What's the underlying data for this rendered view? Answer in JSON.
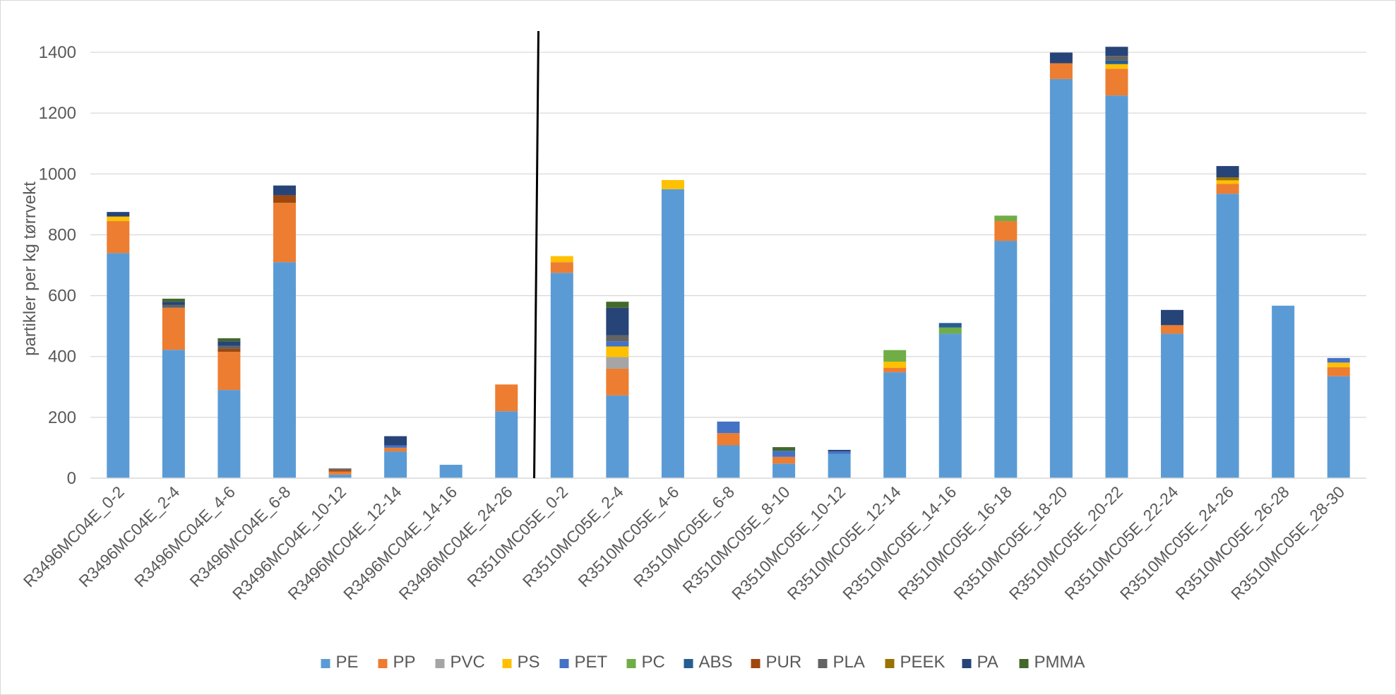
{
  "chart_data": {
    "type": "bar",
    "stacked": true,
    "ylabel": "partikler per kg tørrvekt",
    "ylim": [
      0,
      1400
    ],
    "yticks": [
      0,
      200,
      400,
      600,
      800,
      1000,
      1200,
      1400
    ],
    "grid": true,
    "legend_position": "bottom",
    "divider_after_index": 7,
    "categories": [
      "R3496MC04E_0-2",
      "R3496MC04E_2-4",
      "R3496MC04E_4-6",
      "R3496MC04E_6-8",
      "R3496MC04E_10-12",
      "R3496MC04E_12-14",
      "R3496MC04E_14-16",
      "R3496MC04E_24-26",
      "R3510MC05E_0-2",
      "R3510MC05E_2-4",
      "R3510MC05E_4-6",
      "R3510MC05E_6-8",
      "R3510MC05E_8-10",
      "R3510MC05E_10-12",
      "R3510MC05E_12-14",
      "R3510MC05E_14-16",
      "R3510MC05E_16-18",
      "R3510MC05E_18-20",
      "R3510MC05E_20-22",
      "R3510MC05E_22-24",
      "R3510MC05E_24-26",
      "R3510MC05E_26-28",
      "R3510MC05E_28-30"
    ],
    "series": [
      {
        "name": "PE",
        "color": "#5B9BD5",
        "values": [
          740,
          422,
          290,
          710,
          12,
          88,
          44,
          220,
          675,
          272,
          950,
          108,
          48,
          80,
          348,
          475,
          780,
          1312,
          1258,
          475,
          935,
          567,
          335
        ]
      },
      {
        "name": "PP",
        "color": "#ED7D31",
        "values": [
          105,
          138,
          125,
          195,
          10,
          12,
          0,
          88,
          35,
          88,
          0,
          40,
          22,
          0,
          15,
          0,
          65,
          52,
          88,
          28,
          32,
          0,
          30
        ]
      },
      {
        "name": "PVC",
        "color": "#A5A5A5",
        "values": [
          0,
          0,
          0,
          0,
          0,
          0,
          0,
          0,
          0,
          38,
          0,
          0,
          0,
          0,
          0,
          0,
          0,
          0,
          0,
          0,
          0,
          0,
          0
        ]
      },
      {
        "name": "PS",
        "color": "#FFC000",
        "values": [
          15,
          0,
          0,
          0,
          0,
          0,
          0,
          0,
          20,
          35,
          30,
          0,
          0,
          0,
          20,
          0,
          0,
          0,
          15,
          0,
          12,
          0,
          15
        ]
      },
      {
        "name": "PET",
        "color": "#4472C4",
        "values": [
          0,
          0,
          0,
          0,
          0,
          8,
          0,
          0,
          0,
          17,
          0,
          38,
          20,
          8,
          0,
          0,
          0,
          0,
          0,
          0,
          0,
          0,
          15
        ]
      },
      {
        "name": "PC",
        "color": "#70AD47",
        "values": [
          0,
          0,
          0,
          0,
          0,
          0,
          0,
          0,
          0,
          0,
          0,
          0,
          0,
          0,
          38,
          20,
          18,
          0,
          0,
          0,
          0,
          0,
          0
        ]
      },
      {
        "name": "ABS",
        "color": "#255E91",
        "values": [
          0,
          0,
          0,
          0,
          0,
          0,
          0,
          0,
          0,
          0,
          0,
          0,
          0,
          0,
          0,
          15,
          0,
          0,
          12,
          0,
          0,
          0,
          0
        ]
      },
      {
        "name": "PUR",
        "color": "#9E480E",
        "values": [
          0,
          0,
          10,
          25,
          5,
          0,
          0,
          0,
          0,
          0,
          0,
          0,
          0,
          0,
          0,
          0,
          0,
          0,
          0,
          0,
          0,
          0,
          0
        ]
      },
      {
        "name": "PLA",
        "color": "#636363",
        "values": [
          0,
          10,
          10,
          0,
          5,
          0,
          0,
          0,
          0,
          20,
          0,
          0,
          0,
          0,
          0,
          0,
          0,
          0,
          15,
          0,
          0,
          0,
          0
        ]
      },
      {
        "name": "PEEK",
        "color": "#997300",
        "values": [
          0,
          0,
          0,
          0,
          0,
          0,
          0,
          0,
          0,
          0,
          0,
          0,
          0,
          0,
          0,
          0,
          0,
          0,
          0,
          0,
          10,
          0,
          0
        ]
      },
      {
        "name": "PA",
        "color": "#264478",
        "values": [
          15,
          10,
          15,
          32,
          0,
          30,
          0,
          0,
          0,
          90,
          0,
          0,
          0,
          5,
          0,
          0,
          0,
          35,
          30,
          50,
          37,
          0,
          0
        ]
      },
      {
        "name": "PMMA",
        "color": "#43682B",
        "values": [
          0,
          10,
          10,
          0,
          0,
          0,
          0,
          0,
          0,
          20,
          0,
          0,
          12,
          0,
          0,
          0,
          0,
          0,
          0,
          0,
          0,
          0,
          0
        ]
      }
    ]
  }
}
